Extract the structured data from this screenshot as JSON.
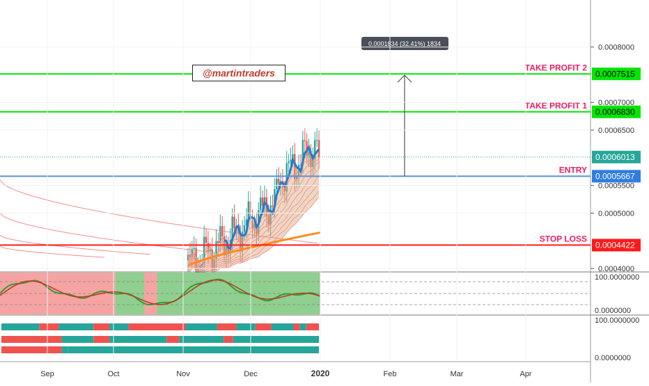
{
  "watermark": "@martintraders",
  "measure_tooltip": "0.0001834 (32.41%) 1834",
  "chart_data": {
    "type": "candlestick",
    "x_axis": {
      "ticks": [
        "Sep",
        "Oct",
        "Nov",
        "Dec",
        "2020",
        "Feb",
        "Mar",
        "Apr"
      ]
    },
    "price_axis": {
      "range": [
        0.000395,
        0.000885
      ],
      "ticks": [
        "0.0008000",
        "0.0007000",
        "0.0006500",
        "0.0005500",
        "0.0005000",
        "0.0004000"
      ],
      "tick_values": [
        0.0008,
        0.0007,
        0.00065,
        0.00055,
        0.0005,
        0.0004
      ]
    },
    "levels": [
      {
        "label": "TAKE PROFIT 2",
        "value": 0.0007515,
        "value_text": "0.0007515",
        "color": "#00e600",
        "badge_color": "#00e600",
        "text_color": "#000000"
      },
      {
        "label": "TAKE PROFIT 1",
        "value": 0.000683,
        "value_text": "0.0006830",
        "color": "#00e600",
        "badge_color": "#00e600",
        "text_color": "#000000"
      },
      {
        "label": "ENTRY",
        "value": 0.0005667,
        "value_text": "0.0005667",
        "color": "#5b8fd8",
        "badge_color": "#2f7de1",
        "text_color": "#ffffff"
      },
      {
        "label": "STOP LOSS",
        "value": 0.0004422,
        "value_text": "0.0004422",
        "color": "#ff1a1a",
        "badge_color": "#ff1a1a",
        "text_color": "#ffffff"
      }
    ],
    "last_price": {
      "value": 0.0006013,
      "value_text": "0.0006013",
      "color": "#26a69a"
    },
    "colors": {
      "up": "#26a69a",
      "down": "#ef5350"
    },
    "oscillator": {
      "axis_ticks": [
        "100.0000000",
        "0.0000000"
      ],
      "bands": [
        {
          "from": 0,
          "to": 0.36,
          "color": "#f5a3a3"
        },
        {
          "from": 0.36,
          "to": 0.45,
          "color": "#8fcf8f"
        },
        {
          "from": 0.45,
          "to": 0.49,
          "color": "#f5a3a3"
        },
        {
          "from": 0.49,
          "to": 1.0,
          "color": "#8fcf8f"
        }
      ]
    },
    "trend_bars": {
      "axis_ticks": [
        "100.0000000",
        "0.0000000"
      ],
      "rows": [
        [
          {
            "from": 0,
            "to": 0.12,
            "c": "up"
          },
          {
            "from": 0.12,
            "to": 0.18,
            "c": "down"
          },
          {
            "from": 0.18,
            "to": 0.29,
            "c": "up"
          },
          {
            "from": 0.29,
            "to": 0.34,
            "c": "down"
          },
          {
            "from": 0.34,
            "to": 0.4,
            "c": "up"
          },
          {
            "from": 0.4,
            "to": 0.58,
            "c": "down"
          },
          {
            "from": 0.58,
            "to": 0.68,
            "c": "up"
          },
          {
            "from": 0.68,
            "to": 0.74,
            "c": "down"
          },
          {
            "from": 0.74,
            "to": 0.8,
            "c": "up"
          },
          {
            "from": 0.8,
            "to": 0.85,
            "c": "down"
          },
          {
            "from": 0.85,
            "to": 0.92,
            "c": "up"
          },
          {
            "from": 0.92,
            "to": 0.94,
            "c": "down"
          },
          {
            "from": 0.94,
            "to": 0.96,
            "c": "up"
          },
          {
            "from": 0.96,
            "to": 1,
            "c": "down"
          }
        ],
        [
          {
            "from": 0,
            "to": 0.19,
            "c": "down"
          },
          {
            "from": 0.19,
            "to": 0.29,
            "c": "up"
          },
          {
            "from": 0.29,
            "to": 0.34,
            "c": "down"
          },
          {
            "from": 0.34,
            "to": 0.52,
            "c": "up"
          },
          {
            "from": 0.52,
            "to": 0.56,
            "c": "down"
          },
          {
            "from": 0.56,
            "to": 0.7,
            "c": "up"
          },
          {
            "from": 0.7,
            "to": 0.73,
            "c": "down"
          },
          {
            "from": 0.73,
            "to": 1,
            "c": "up"
          }
        ],
        [
          {
            "from": 0,
            "to": 0.19,
            "c": "down"
          },
          {
            "from": 0.19,
            "to": 0.21,
            "c": "up"
          },
          {
            "from": 0.21,
            "to": 1,
            "c": "up"
          }
        ]
      ]
    }
  }
}
